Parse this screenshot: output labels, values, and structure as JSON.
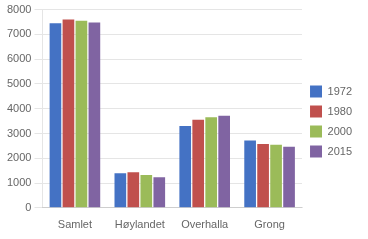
{
  "chart_data": {
    "type": "bar",
    "categories": [
      "Samlet",
      "Høylandet",
      "Overhalla",
      "Grong"
    ],
    "series": [
      {
        "name": "1972",
        "color": "#4472C4",
        "values": [
          7450,
          1390,
          3300,
          2720
        ]
      },
      {
        "name": "1980",
        "color": "#C0504D",
        "values": [
          7600,
          1430,
          3550,
          2580
        ]
      },
      {
        "name": "2000",
        "color": "#9BBB59",
        "values": [
          7550,
          1320,
          3650,
          2540
        ]
      },
      {
        "name": "2015",
        "color": "#8064A2",
        "values": [
          7480,
          1230,
          3720,
          2460
        ]
      }
    ],
    "ylim": [
      0,
      8000
    ],
    "yticks": [
      0,
      1000,
      2000,
      3000,
      4000,
      5000,
      6000,
      7000,
      8000
    ],
    "grid": true,
    "legend": "right"
  }
}
